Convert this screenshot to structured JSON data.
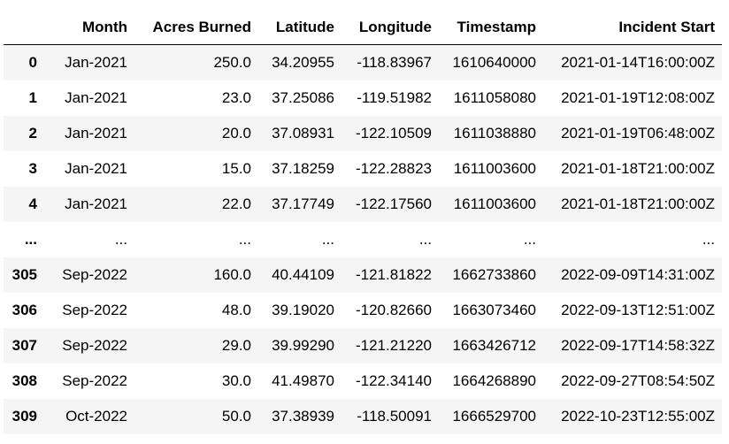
{
  "table": {
    "index_header": "",
    "columns": [
      "Month",
      "Acres Burned",
      "Latitude",
      "Longitude",
      "Timestamp",
      "Incident Start"
    ],
    "rows": [
      {
        "index": "0",
        "cells": [
          "Jan-2021",
          "250.0",
          "34.20955",
          "-118.83967",
          "1610640000",
          "2021-01-14T16:00:00Z"
        ]
      },
      {
        "index": "1",
        "cells": [
          "Jan-2021",
          "23.0",
          "37.25086",
          "-119.51982",
          "1611058080",
          "2021-01-19T12:08:00Z"
        ]
      },
      {
        "index": "2",
        "cells": [
          "Jan-2021",
          "20.0",
          "37.08931",
          "-122.10509",
          "1611038880",
          "2021-01-19T06:48:00Z"
        ]
      },
      {
        "index": "3",
        "cells": [
          "Jan-2021",
          "15.0",
          "37.18259",
          "-122.28823",
          "1611003600",
          "2021-01-18T21:00:00Z"
        ]
      },
      {
        "index": "4",
        "cells": [
          "Jan-2021",
          "22.0",
          "37.17749",
          "-122.17560",
          "1611003600",
          "2021-01-18T21:00:00Z"
        ]
      },
      {
        "index": "...",
        "cells": [
          "...",
          "...",
          "...",
          "...",
          "...",
          "..."
        ]
      },
      {
        "index": "305",
        "cells": [
          "Sep-2022",
          "160.0",
          "40.44109",
          "-121.81822",
          "1662733860",
          "2022-09-09T14:31:00Z"
        ]
      },
      {
        "index": "306",
        "cells": [
          "Sep-2022",
          "48.0",
          "39.19020",
          "-120.82660",
          "1663073460",
          "2022-09-13T12:51:00Z"
        ]
      },
      {
        "index": "307",
        "cells": [
          "Sep-2022",
          "29.0",
          "39.99290",
          "-121.21220",
          "1663426712",
          "2022-09-17T14:58:32Z"
        ]
      },
      {
        "index": "308",
        "cells": [
          "Sep-2022",
          "30.0",
          "41.49870",
          "-122.34140",
          "1664268890",
          "2022-09-27T08:54:50Z"
        ]
      },
      {
        "index": "309",
        "cells": [
          "Oct-2022",
          "50.0",
          "37.38939",
          "-118.50091",
          "1666529700",
          "2022-10-23T12:55:00Z"
        ]
      }
    ]
  }
}
